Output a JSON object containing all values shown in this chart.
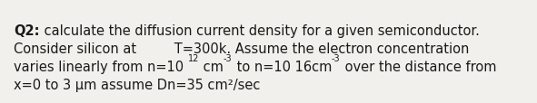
{
  "line1_bold": "Q2:",
  "line1_rest": " calculate the diffusion current density for a given semiconductor.",
  "line2": "Consider silicon at         T=300k. Assume the electron concentration",
  "line3_p1": "varies linearly from n=10 ",
  "line3_sup1": "12",
  "line3_p2": " cm",
  "line3_sup2": "-3",
  "line3_p3": " to n=10 16cm",
  "line3_sup3": "-3",
  "line3_p4": " over the distance from",
  "line4": "x=0 to 3 μm assume Dn=35 cm²/sec",
  "bg_color": "#f2f0ec",
  "text_color": "#1a1a1a",
  "font_size": 10.5,
  "sup_font_size": 7.0,
  "fig_width": 5.91,
  "fig_height": 1.15,
  "dpi": 100
}
